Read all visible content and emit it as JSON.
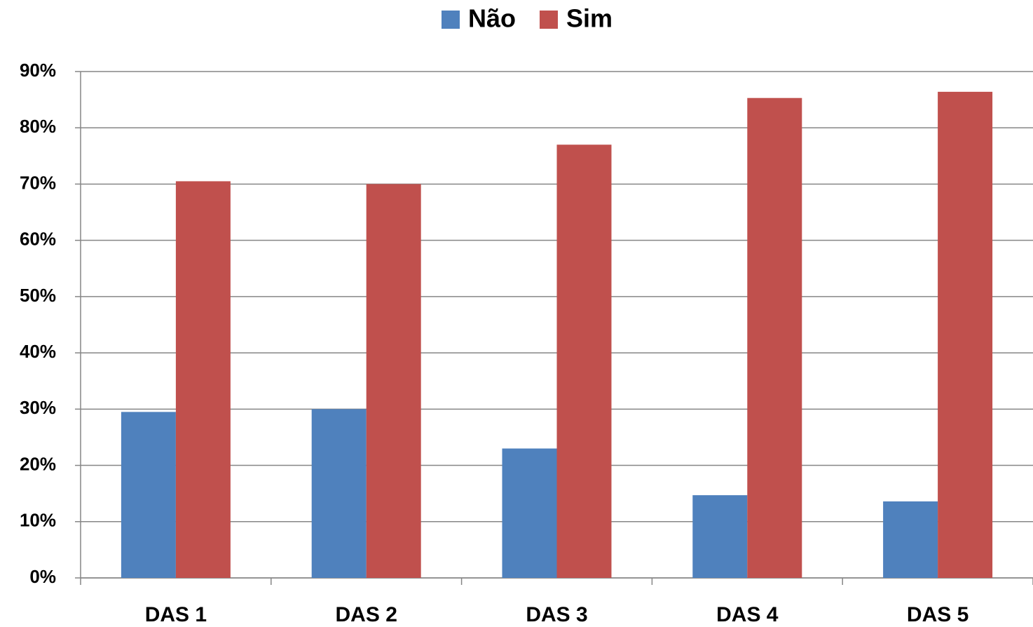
{
  "chart_data": {
    "type": "bar",
    "categories": [
      "DAS 1",
      "DAS 2",
      "DAS 3",
      "DAS 4",
      "DAS 5"
    ],
    "series": [
      {
        "name": "Não",
        "color": "#4f81bd",
        "values": [
          29.5,
          30,
          23,
          14.7,
          13.6
        ]
      },
      {
        "name": "Sim",
        "color": "#c0504d",
        "values": [
          70.5,
          70,
          77,
          85.3,
          86.4
        ]
      }
    ],
    "ylim": [
      0,
      90
    ],
    "yticks": [
      {
        "value": 0,
        "label": "0%"
      },
      {
        "value": 10,
        "label": "10%"
      },
      {
        "value": 20,
        "label": "20%"
      },
      {
        "value": 30,
        "label": "30%"
      },
      {
        "value": 40,
        "label": "40%"
      },
      {
        "value": 50,
        "label": "50%"
      },
      {
        "value": 60,
        "label": "60%"
      },
      {
        "value": 70,
        "label": "70%"
      },
      {
        "value": 80,
        "label": "80%"
      },
      {
        "value": 90,
        "label": "90%"
      }
    ],
    "grid": true,
    "legend": "top"
  }
}
